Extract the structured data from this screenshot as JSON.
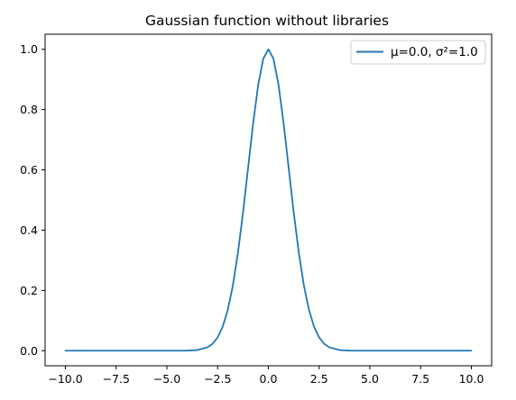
{
  "chart_data": {
    "type": "line",
    "title": "Gaussian function without libraries",
    "xlabel": "",
    "ylabel": "",
    "xlim": [
      -11.0,
      11.0
    ],
    "ylim": [
      -0.05,
      1.05
    ],
    "xticks": [
      -10.0,
      -7.5,
      -5.0,
      -2.5,
      0.0,
      2.5,
      5.0,
      7.5,
      10.0
    ],
    "xtick_labels": [
      "−10.0",
      "−7.5",
      "−5.0",
      "−2.5",
      "0.0",
      "2.5",
      "5.0",
      "7.5",
      "10.0"
    ],
    "yticks": [
      0.0,
      0.2,
      0.4,
      0.6,
      0.8,
      1.0
    ],
    "ytick_labels": [
      "0.0",
      "0.2",
      "0.4",
      "0.6",
      "0.8",
      "1.0"
    ],
    "grid": false,
    "legend_position": "top-right",
    "series": [
      {
        "name": "μ=0.0, σ²=1.0",
        "color": "#1f77b4",
        "x": [
          -10.0,
          -9.5,
          -9.0,
          -8.5,
          -8.0,
          -7.5,
          -7.0,
          -6.5,
          -6.0,
          -5.5,
          -5.0,
          -4.5,
          -4.0,
          -3.5,
          -3.0,
          -2.75,
          -2.5,
          -2.25,
          -2.0,
          -1.75,
          -1.5,
          -1.25,
          -1.0,
          -0.75,
          -0.5,
          -0.25,
          0.0,
          0.25,
          0.5,
          0.75,
          1.0,
          1.25,
          1.5,
          1.75,
          2.0,
          2.25,
          2.5,
          2.75,
          3.0,
          3.5,
          4.0,
          4.5,
          5.0,
          5.5,
          6.0,
          6.5,
          7.0,
          7.5,
          8.0,
          8.5,
          9.0,
          9.5,
          10.0
        ],
        "y": [
          0.0,
          0.0,
          0.0,
          0.0,
          0.0,
          0.0,
          0.0,
          0.0,
          0.0,
          0.0,
          0.0,
          0.0,
          0.0003,
          0.0022,
          0.0111,
          0.0228,
          0.0439,
          0.0796,
          0.1353,
          0.2163,
          0.3247,
          0.4578,
          0.6065,
          0.7548,
          0.8825,
          0.9692,
          1.0,
          0.9692,
          0.8825,
          0.7548,
          0.6065,
          0.4578,
          0.3247,
          0.2163,
          0.1353,
          0.0796,
          0.0439,
          0.0228,
          0.0111,
          0.0022,
          0.0003,
          0.0,
          0.0,
          0.0,
          0.0,
          0.0,
          0.0,
          0.0,
          0.0,
          0.0,
          0.0,
          0.0,
          0.0
        ]
      }
    ]
  }
}
